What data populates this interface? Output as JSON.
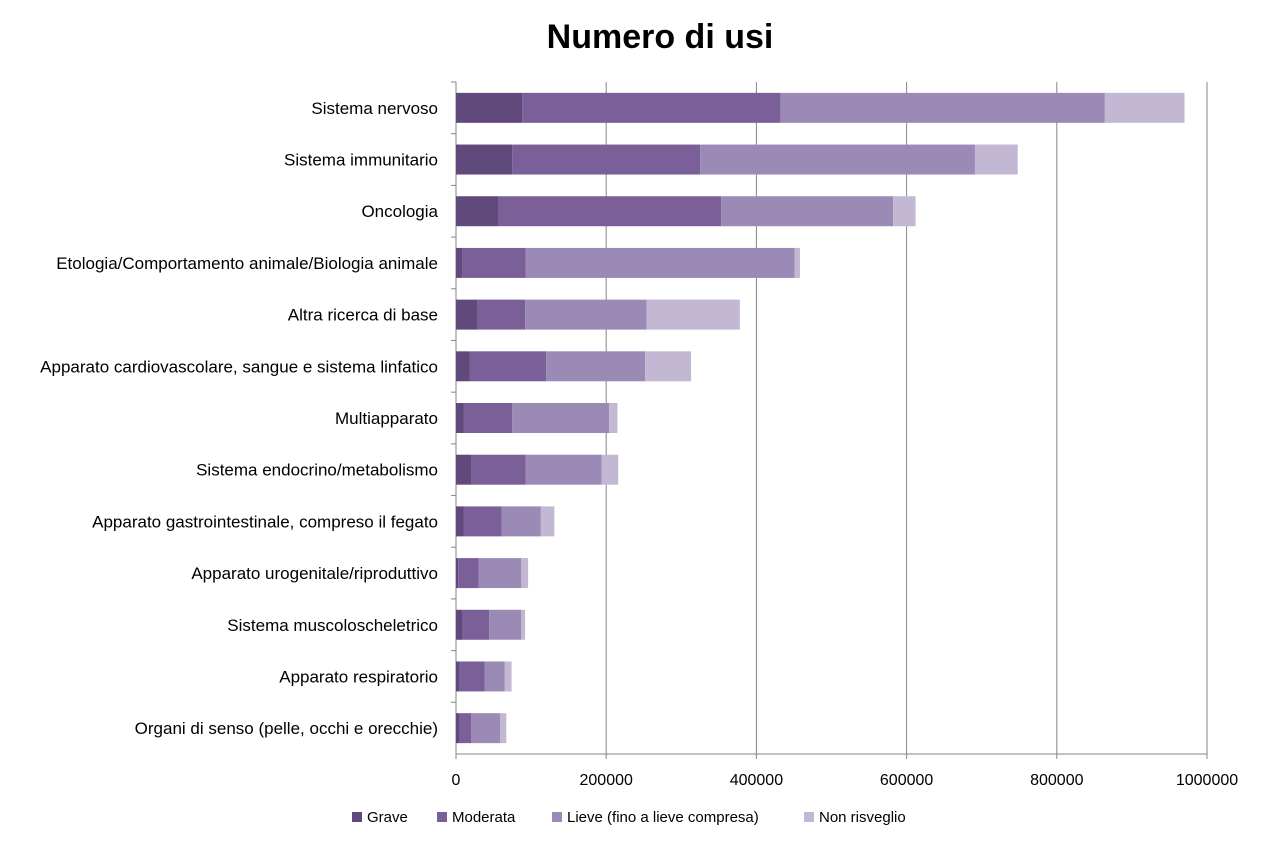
{
  "chart_data": {
    "type": "bar",
    "orientation": "horizontal",
    "stacked": true,
    "title": "Numero di usi",
    "xlabel": "",
    "ylabel": "",
    "xlim": [
      0,
      1000000
    ],
    "x_ticks": [
      "0",
      "200000",
      "400000",
      "600000",
      "800000",
      "1000000"
    ],
    "grid": "vertical",
    "legend_position": "bottom",
    "categories": [
      "Sistema nervoso",
      "Sistema immunitario",
      "Oncologia",
      "Etologia/Comportamento animale/Biologia animale",
      "Altra ricerca di base",
      "Apparato cardiovascolare, sangue e sistema linfatico",
      "Multiapparato",
      "Sistema endocrino/metabolismo",
      "Apparato gastrointestinale, compreso il fegato",
      "Apparato urogenitale/riproduttivo",
      "Sistema muscoloscheletrico",
      "Apparato respiratorio",
      "Organi di senso (pelle, occhi e orecchie)"
    ],
    "series": [
      {
        "name": "Grave",
        "color": "#604a7b",
        "values": [
          88000,
          75000,
          57000,
          9000,
          28000,
          18000,
          10000,
          21000,
          10000,
          3000,
          8000,
          5000,
          4000
        ]
      },
      {
        "name": "Moderata",
        "color": "#7a5f99",
        "values": [
          344000,
          250000,
          296000,
          84000,
          64000,
          102000,
          65000,
          72000,
          51000,
          27000,
          36000,
          33000,
          16000
        ]
      },
      {
        "name": "Lieve (fino a lieve compresa)",
        "color": "#9b8ab6",
        "values": [
          432000,
          366000,
          229000,
          358000,
          162000,
          132000,
          129000,
          101000,
          52000,
          57000,
          43000,
          27000,
          39000
        ]
      },
      {
        "name": "Non risveglio",
        "color": "#c3b8d3",
        "values": [
          106000,
          57000,
          30000,
          7000,
          124000,
          61000,
          11000,
          22000,
          18000,
          9000,
          5000,
          9000,
          8000
        ]
      }
    ]
  }
}
